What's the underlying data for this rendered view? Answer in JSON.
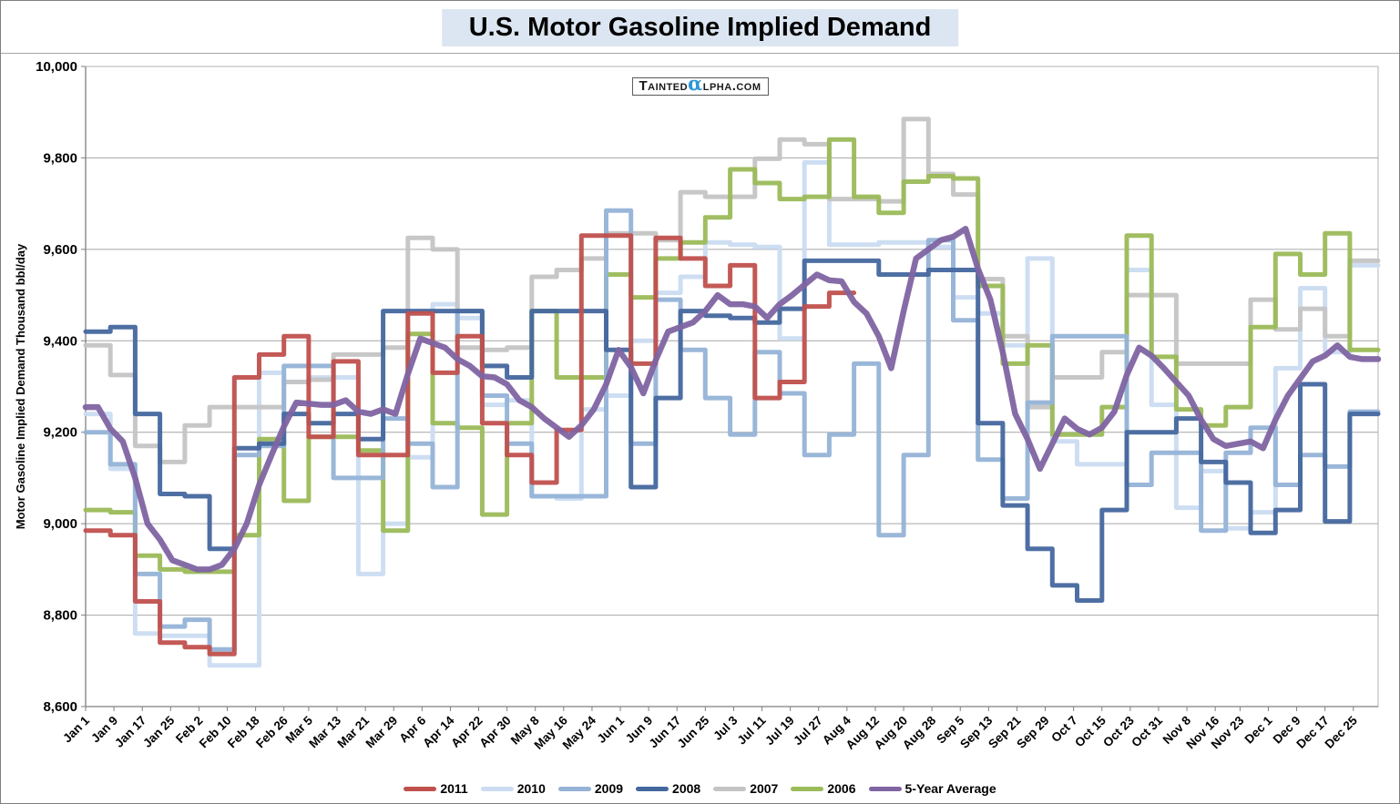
{
  "title": "U.S. Motor Gasoline Implied Demand",
  "watermark": {
    "prefix": "Tainted",
    "alpha": "α",
    "suffix": "lpha.com"
  },
  "chart_data": {
    "type": "line",
    "title": "U.S. Motor Gasoline Implied Demand",
    "xlabel": "",
    "ylabel": "Motor Gasoline Implied Demand Thousand bbl/day",
    "ylim": [
      8600,
      10000
    ],
    "ytick_step": 200,
    "ytick_labels": [
      "8,600",
      "8,800",
      "9,000",
      "9,200",
      "9,400",
      "9,600",
      "9,800",
      "10,000"
    ],
    "grid": "horizontal",
    "legend_position": "bottom",
    "x_tick_labels": [
      "Jan 1",
      "Jan 9",
      "Jan 17",
      "Jan 25",
      "Feb 2",
      "Feb 10",
      "Feb 18",
      "Feb 26",
      "Mar 5",
      "Mar 13",
      "Mar 21",
      "Mar 29",
      "Apr 6",
      "Apr 14",
      "Apr 22",
      "Apr 30",
      "May 8",
      "May 16",
      "May 24",
      "Jun 1",
      "Jun 9",
      "Jun 17",
      "Jun 25",
      "Jul 3",
      "Jul 11",
      "Jul 19",
      "Jul 27",
      "Aug 4",
      "Aug 12",
      "Aug 20",
      "Aug 28",
      "Sep 5",
      "Sep 13",
      "Sep 21",
      "Sep 29",
      "Oct 7",
      "Oct 15",
      "Oct 23",
      "Oct 31",
      "Nov 8",
      "Nov 16",
      "Nov 23",
      "Dec 1",
      "Dec 9",
      "Dec 17",
      "Dec 25"
    ],
    "x_tick_days": [
      0,
      8,
      16,
      24,
      32,
      40,
      48,
      56,
      63,
      71,
      79,
      87,
      95,
      103,
      111,
      119,
      127,
      135,
      143,
      151,
      159,
      167,
      175,
      183,
      191,
      199,
      207,
      215,
      223,
      231,
      239,
      247,
      255,
      263,
      271,
      279,
      287,
      295,
      303,
      311,
      319,
      326,
      334,
      342,
      350,
      358
    ],
    "weeks": 52,
    "draw_order": [
      "2010",
      "2007",
      "2006",
      "2009",
      "2008",
      "2011",
      "5-Year Average"
    ],
    "series": [
      {
        "name": "2011",
        "color": "#C0504D",
        "style": "step",
        "values": [
          8985,
          8975,
          8830,
          8740,
          8730,
          8715,
          9320,
          9370,
          9410,
          9190,
          9355,
          9150,
          9150,
          9460,
          9330,
          9410,
          9220,
          9150,
          9090,
          9205,
          9630,
          9630,
          9350,
          9625,
          9580,
          9520,
          9565,
          9275,
          9310,
          9475,
          9505,
          null,
          null,
          null,
          null,
          null,
          null,
          null,
          null,
          null,
          null,
          null,
          null,
          null,
          null,
          null,
          null,
          null,
          null,
          null,
          null,
          null
        ]
      },
      {
        "name": "2010",
        "color": "#CBDCF1",
        "style": "step",
        "values": [
          9240,
          9120,
          8760,
          8755,
          8755,
          8690,
          8690,
          9330,
          9310,
          9320,
          9320,
          8890,
          9000,
          9145,
          9480,
          9450,
          9260,
          9270,
          9060,
          9055,
          9250,
          9280,
          9400,
          9505,
          9540,
          9615,
          9610,
          9605,
          9405,
          9790,
          9610,
          9610,
          9615,
          9615,
          9605,
          9495,
          9460,
          9390,
          9580,
          9180,
          9130,
          9130,
          9555,
          9260,
          9035,
          9115,
          8990,
          9025,
          9340,
          9515,
          9375,
          9565
        ]
      },
      {
        "name": "2009",
        "color": "#95B3D7",
        "style": "step",
        "values": [
          9200,
          9130,
          8890,
          8775,
          8790,
          8725,
          9150,
          9170,
          9345,
          9345,
          9100,
          9100,
          9230,
          9175,
          9080,
          9465,
          9280,
          9175,
          9060,
          9060,
          9060,
          9685,
          9175,
          9490,
          9380,
          9275,
          9195,
          9375,
          9285,
          9150,
          9195,
          9350,
          8975,
          9150,
          9620,
          9445,
          9140,
          9055,
          9265,
          9410,
          9410,
          9410,
          9085,
          9155,
          9155,
          8985,
          9155,
          9210,
          9085,
          9150,
          9125,
          9245
        ]
      },
      {
        "name": "2008",
        "color": "#44679E",
        "style": "step",
        "values": [
          9420,
          9430,
          9240,
          9065,
          9060,
          8945,
          9165,
          9175,
          9240,
          9220,
          9240,
          9185,
          9465,
          9465,
          9465,
          9465,
          9345,
          9320,
          9465,
          9465,
          9465,
          9380,
          9080,
          9275,
          9465,
          9455,
          9450,
          9440,
          9470,
          9575,
          9575,
          9575,
          9545,
          9545,
          9555,
          9555,
          9220,
          9040,
          8945,
          8865,
          8832,
          9030,
          9200,
          9200,
          9230,
          9135,
          9090,
          8980,
          9030,
          9305,
          9005,
          9240
        ]
      },
      {
        "name": "2007",
        "color": "#C4C4C4",
        "style": "step",
        "values": [
          9390,
          9325,
          9170,
          9135,
          9215,
          9255,
          9255,
          9255,
          9310,
          9315,
          9370,
          9370,
          9385,
          9625,
          9600,
          9385,
          9380,
          9385,
          9540,
          9555,
          9580,
          9635,
          9635,
          9620,
          9725,
          9715,
          9715,
          9798,
          9840,
          9830,
          9710,
          9710,
          9705,
          9885,
          9765,
          9720,
          9535,
          9410,
          9255,
          9320,
          9320,
          9375,
          9500,
          9500,
          9350,
          9350,
          9350,
          9490,
          9425,
          9470,
          9410,
          9575
        ]
      },
      {
        "name": "2006",
        "color": "#9BBB59",
        "style": "step",
        "values": [
          9030,
          9025,
          8930,
          8900,
          8895,
          8895,
          8975,
          9185,
          9050,
          9190,
          9190,
          9160,
          8985,
          9415,
          9220,
          9210,
          9020,
          9220,
          9465,
          9320,
          9320,
          9545,
          9495,
          9580,
          9615,
          9670,
          9775,
          9745,
          9710,
          9715,
          9840,
          9715,
          9680,
          9748,
          9760,
          9755,
          9520,
          9350,
          9390,
          9195,
          9195,
          9255,
          9630,
          9365,
          9250,
          9215,
          9255,
          9430,
          9590,
          9545,
          9635,
          9380
        ]
      },
      {
        "name": "5-Year Average",
        "color": "#8064A2",
        "style": "smooth",
        "values": [
          9255,
          9180,
          9000,
          8920,
          8900,
          8910,
          9000,
          9150,
          9265,
          9260,
          9270,
          9240,
          9240,
          9405,
          9385,
          9345,
          9320,
          9270,
          9230,
          9190,
          9250,
          9380,
          9285,
          9420,
          9440,
          9500,
          9480,
          9450,
          9500,
          9545,
          9530,
          9460,
          9340,
          9580,
          9620,
          9645,
          9490,
          9240,
          9120,
          9230,
          9195,
          9245,
          9385,
          9340,
          9280,
          9185,
          9175,
          9165,
          9280,
          9355,
          9390,
          9360
        ]
      }
    ]
  }
}
